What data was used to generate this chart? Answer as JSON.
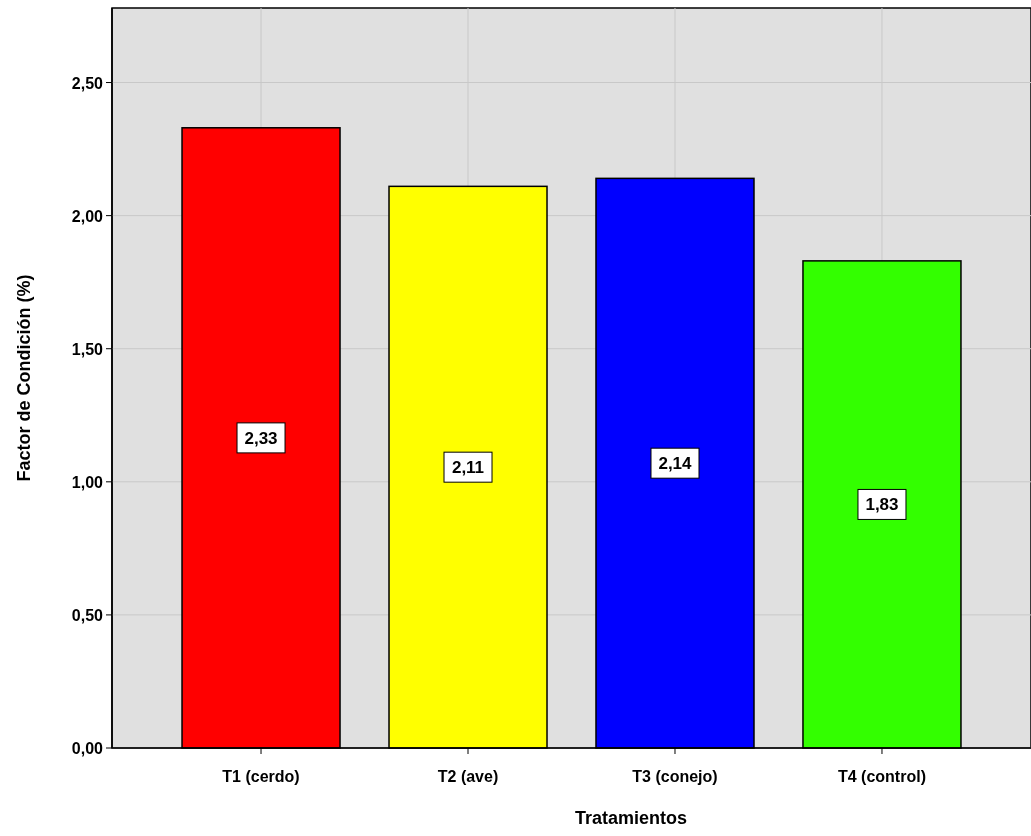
{
  "chart_data": {
    "type": "bar",
    "xlabel": "Tratamientos",
    "ylabel": "Factor de Condición (%)",
    "categories": [
      "T1 (cerdo)",
      "T2 (ave)",
      "T3 (conejo)",
      "T4 (control)"
    ],
    "values": [
      2.33,
      2.11,
      2.14,
      1.83
    ],
    "colors": [
      "#ff0000",
      "#ffff00",
      "#0000ff",
      "#33ff00"
    ],
    "value_labels": [
      "2,33",
      "2,11",
      "2,14",
      "1,83"
    ],
    "ylim": [
      0,
      2.78
    ],
    "yticks": [
      {
        "value": 0,
        "label": "0,00"
      },
      {
        "value": 0.5,
        "label": "0,50"
      },
      {
        "value": 1,
        "label": "1,00"
      },
      {
        "value": 1.5,
        "label": "1,50"
      },
      {
        "value": 2,
        "label": "2,00"
      },
      {
        "value": 2.5,
        "label": "2,50"
      }
    ],
    "grid": true
  }
}
